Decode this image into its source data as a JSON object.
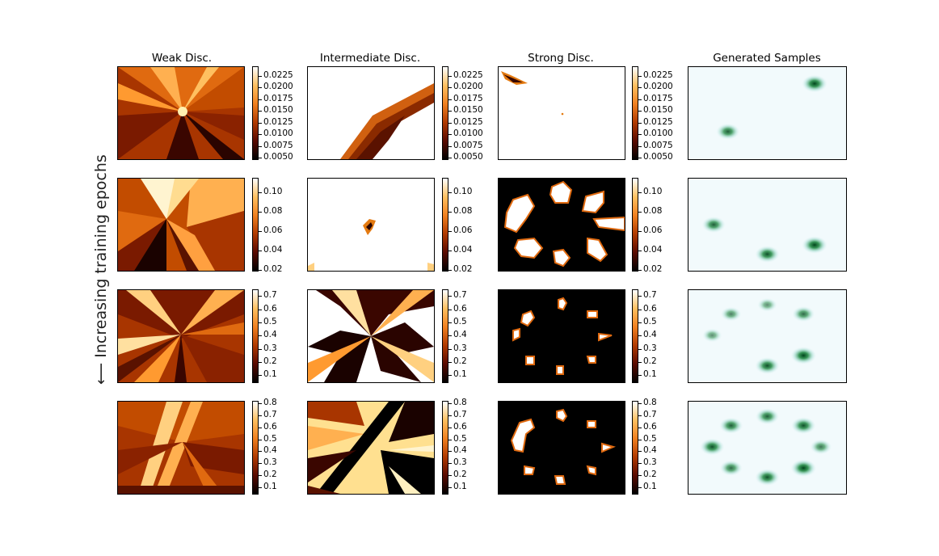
{
  "chart_data": {
    "type": "heatmap",
    "title": "",
    "ylabel": "⟵ Increasing training epochs",
    "columns": [
      "Weak Disc.",
      "Intermediate Disc.",
      "Strong Disc.",
      "Generated Samples"
    ],
    "colormaps": {
      "discriminator": "afmhot",
      "samples": "BuGn"
    },
    "rows": [
      {
        "colorbar": {
          "ticks": [
            "0.0225",
            "0.0200",
            "0.0175",
            "0.0150",
            "0.0125",
            "0.0100",
            "0.0075",
            "0.0050"
          ],
          "range": [
            0.0045,
            0.0245
          ]
        },
        "weak": "bright center with radial wedges",
        "intermediate": "mostly white, orange diagonal band lower-left",
        "strong": "mostly white, small orange streak top-left",
        "generated_modes": [
          {
            "x": 0.8,
            "y": 0.18,
            "w": 1.0
          },
          {
            "x": 0.25,
            "y": 0.7,
            "w": 0.8
          }
        ]
      },
      {
        "colorbar": {
          "ticks": [
            "0.10",
            "0.08",
            "0.06",
            "0.04",
            "0.02"
          ],
          "range": [
            0.018,
            0.115
          ]
        },
        "generated_modes": [
          {
            "x": 0.16,
            "y": 0.5,
            "w": 0.8
          },
          {
            "x": 0.5,
            "y": 0.82,
            "w": 0.9
          },
          {
            "x": 0.8,
            "y": 0.72,
            "w": 1.0
          }
        ]
      },
      {
        "colorbar": {
          "ticks": [
            "0.7",
            "0.6",
            "0.5",
            "0.4",
            "0.3",
            "0.2",
            "0.1"
          ],
          "range": [
            0.04,
            0.75
          ]
        },
        "generated_modes": [
          {
            "x": 0.5,
            "y": 0.16,
            "w": 0.4
          },
          {
            "x": 0.27,
            "y": 0.26,
            "w": 0.5
          },
          {
            "x": 0.73,
            "y": 0.26,
            "w": 0.7
          },
          {
            "x": 0.15,
            "y": 0.49,
            "w": 0.4
          },
          {
            "x": 0.5,
            "y": 0.82,
            "w": 0.9
          },
          {
            "x": 0.73,
            "y": 0.71,
            "w": 1.0
          }
        ]
      },
      {
        "colorbar": {
          "ticks": [
            "0.8",
            "0.7",
            "0.6",
            "0.5",
            "0.4",
            "0.3",
            "0.2",
            "0.1"
          ],
          "range": [
            0.04,
            0.82
          ]
        },
        "generated_modes": [
          {
            "x": 0.5,
            "y": 0.16,
            "w": 0.8
          },
          {
            "x": 0.27,
            "y": 0.26,
            "w": 0.8
          },
          {
            "x": 0.73,
            "y": 0.26,
            "w": 0.9
          },
          {
            "x": 0.15,
            "y": 0.49,
            "w": 0.9
          },
          {
            "x": 0.84,
            "y": 0.49,
            "w": 0.6
          },
          {
            "x": 0.27,
            "y": 0.72,
            "w": 0.7
          },
          {
            "x": 0.5,
            "y": 0.82,
            "w": 0.9
          },
          {
            "x": 0.73,
            "y": 0.72,
            "w": 1.0
          }
        ]
      }
    ]
  }
}
